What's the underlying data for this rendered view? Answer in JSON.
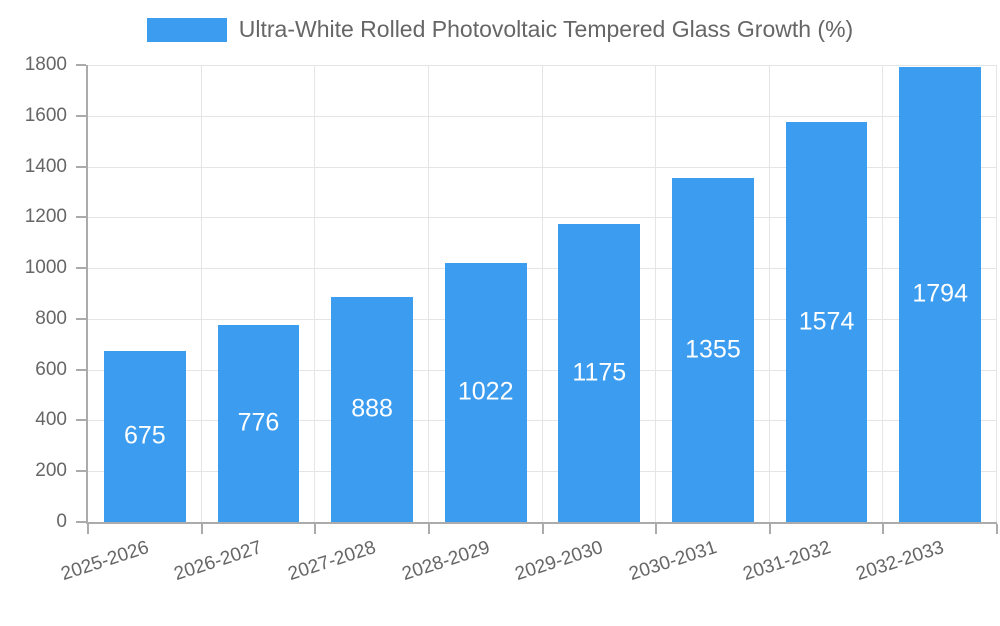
{
  "legend": {
    "label": "Ultra-White Rolled Photovoltaic Tempered Glass Growth (%)"
  },
  "chart_data": {
    "type": "bar",
    "title": "Ultra-White Rolled Photovoltaic Tempered Glass Growth (%)",
    "categories": [
      "2025-2026",
      "2026-2027",
      "2027-2028",
      "2028-2029",
      "2029-2030",
      "2030-2031",
      "2031-2032",
      "2032-2033"
    ],
    "values": [
      675,
      776,
      888,
      1022,
      1175,
      1355,
      1574,
      1794
    ],
    "xlabel": "",
    "ylabel": "",
    "ylim": [
      0,
      1800
    ],
    "yticks": [
      0,
      200,
      400,
      600,
      800,
      1000,
      1200,
      1400,
      1600,
      1800
    ],
    "grid": true,
    "legend_position": "top",
    "value_labels": "inside-center",
    "colors": {
      "bar": "#3B9CF0",
      "value_label": "#FFFFFF",
      "tick_label": "#666666",
      "grid_line": "#E5E5E5",
      "axis_line": "#ABABAB"
    }
  }
}
